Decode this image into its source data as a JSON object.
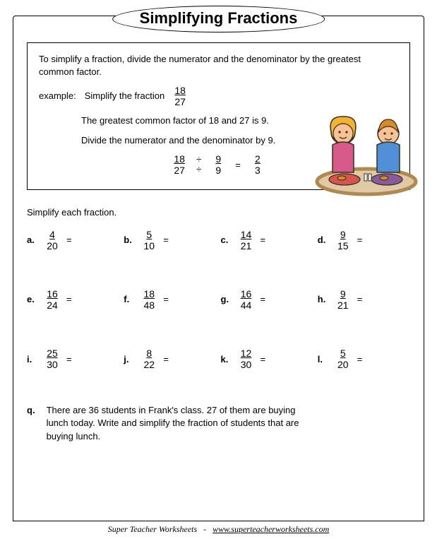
{
  "title": "Simplifying Fractions",
  "example": {
    "intro": "To simplify a fraction, divide the numerator and the denominator by the greatest common factor.",
    "label": "example:",
    "simplify_text": "Simplify the fraction",
    "example_num": "18",
    "example_den": "27",
    "gcf_text": "The greatest common factor of 18 and 27 is 9.",
    "divide_text": "Divide the numerator and the denominator by 9.",
    "work_n1": "18",
    "work_d1": "27",
    "div_top": "÷",
    "div_bot": "÷",
    "work_n2": "9",
    "work_d2": "9",
    "eq": "=",
    "result_n": "2",
    "result_d": "3"
  },
  "instructions": "Simplify each fraction.",
  "equals": "=",
  "problems": [
    {
      "letter": "a.",
      "num": "4",
      "den": "20"
    },
    {
      "letter": "b.",
      "num": "5",
      "den": "10"
    },
    {
      "letter": "c.",
      "num": "14",
      "den": "21"
    },
    {
      "letter": "d.",
      "num": "9",
      "den": "15"
    },
    {
      "letter": "e.",
      "num": "16",
      "den": "24"
    },
    {
      "letter": "f.",
      "num": "18",
      "den": "48"
    },
    {
      "letter": "g.",
      "num": "16",
      "den": "44"
    },
    {
      "letter": "h.",
      "num": "9",
      "den": "21"
    },
    {
      "letter": "i.",
      "num": "25",
      "den": "30"
    },
    {
      "letter": "j.",
      "num": "8",
      "den": "22"
    },
    {
      "letter": "k.",
      "num": "12",
      "den": "30"
    },
    {
      "letter": "l.",
      "num": "5",
      "den": "20"
    }
  ],
  "word_problem": {
    "letter": "q.",
    "text": "There are 36 students in Frank's class.  27 of them are buying lunch today.  Write and simplify the fraction of students that are buying lunch."
  },
  "footer": {
    "source": "Super Teacher Worksheets",
    "separator": "-",
    "url": "www.superteacherworksheets.com"
  },
  "illustration": {
    "colors": {
      "skin": "#f7c396",
      "girl_hair": "#f2b233",
      "boy_hair": "#d98b2b",
      "girl_shirt": "#d65a8a",
      "boy_shirt": "#4f8fd6",
      "table_rim": "#b0894f",
      "table_top": "#e0c9a6",
      "tray1": "#d9534f",
      "tray2": "#8a5a9e",
      "food": "#d98b2b",
      "outline": "#3a2e1f"
    }
  }
}
